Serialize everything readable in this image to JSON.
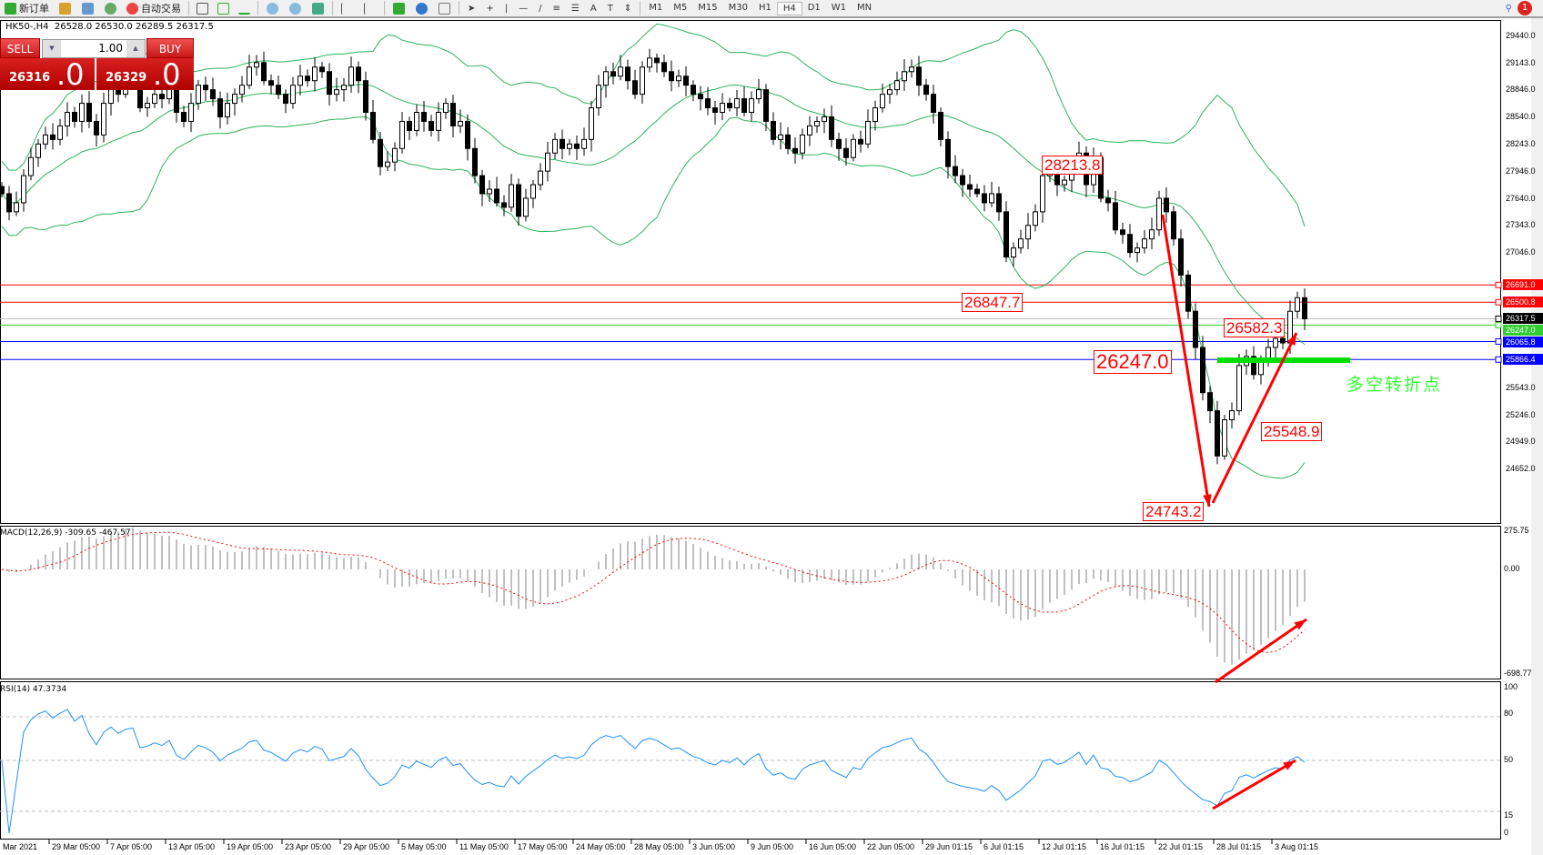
{
  "toolbar": {
    "new_order": "新订单",
    "auto_trading": "自动交易",
    "timeframes": [
      "M1",
      "M5",
      "M15",
      "M30",
      "H1",
      "H4",
      "D1",
      "W1",
      "MN"
    ],
    "active_timeframe": "H4",
    "notification_count": "1"
  },
  "chart_info": {
    "symbol": "HK50-,H4",
    "open": "26528.0",
    "high": "26530.0",
    "low": "26289.5",
    "close": "26317.5"
  },
  "trade_panel": {
    "sell_label": "SELL",
    "buy_label": "BUY",
    "lot": "1.00",
    "bid_main": "26316",
    "bid_frac": ".0",
    "ask_main": "26329",
    "ask_frac": ".0"
  },
  "price_axis": [
    "29440.0",
    "29143.0",
    "28846.0",
    "28540.0",
    "28243.0",
    "27946.0",
    "27640.0",
    "27343.0",
    "27046.0",
    "25543.0",
    "25246.0",
    "24949.0",
    "24652.0"
  ],
  "level_lines": [
    {
      "value": "26691.0",
      "color": "#ff0000"
    },
    {
      "value": "26500.8",
      "color": "#ff0000"
    },
    {
      "value": "26317.5",
      "color": "#000000",
      "line": "#c0c0c0"
    },
    {
      "value": "26247.0",
      "color": "#32cd32"
    },
    {
      "value": "26065.8",
      "color": "#0000ff"
    },
    {
      "value": "25866.4",
      "color": "#0000ff"
    }
  ],
  "annotations": {
    "high1": "28213.8",
    "low1": "26847.7",
    "high2": "26582.3",
    "pivot": "26247.0",
    "low2": "25548.9",
    "low3": "24743.2",
    "pivot_text": "多空转折点"
  },
  "macd": {
    "label": "MACD(12,26,9) -309.65 -467.57",
    "axis": [
      "275.75",
      "0.00",
      "-698.77"
    ]
  },
  "rsi": {
    "label": "RSI(14) 47.3734",
    "axis": [
      "100",
      "80",
      "50",
      "15",
      "0"
    ]
  },
  "time_axis": [
    "Mar 2021",
    "29 Mar 05:00",
    "7 Apr 05:00",
    "13 Apr 05:00",
    "19 Apr 05:00",
    "23 Apr 05:00",
    "29 Apr 05:00",
    "5 May 05:00",
    "11 May 05:00",
    "17 May 05:00",
    "24 May 05:00",
    "28 May 05:00",
    "3 Jun 05:00",
    "9 Jun 05:00",
    "16 Jun 05:00",
    "22 Jun 05:00",
    "29 Jun 01:15",
    "6 Jul 01:15",
    "12 Jul 01:15",
    "16 Jul 01:15",
    "22 Jul 01:15",
    "28 Jul 01:15",
    "3 Aug 01:15"
  ],
  "chart_data": {
    "type": "candlestick",
    "symbol": "HK50-",
    "timeframe": "H4",
    "ylim": [
      24652,
      29440
    ],
    "indicators": [
      "Bollinger Bands",
      "MACD(12,26,9)",
      "RSI(14)"
    ],
    "colors": {
      "bands": "#2db35d",
      "macd_signal": "#ff0000",
      "macd_hist": "#c0c0c0",
      "rsi": "#1e90ff",
      "arrows": "#ff0000",
      "pivot": "#00e000"
    },
    "closes": [
      27700,
      27500,
      27600,
      27900,
      28100,
      28250,
      28350,
      28300,
      28450,
      28600,
      28500,
      28700,
      28500,
      28350,
      28700,
      28900,
      28800,
      28950,
      29000,
      28650,
      28700,
      28800,
      28750,
      28900,
      28600,
      28500,
      28700,
      28900,
      28850,
      28750,
      28550,
      28700,
      28800,
      28900,
      29100,
      29150,
      28950,
      28900,
      28800,
      28700,
      28900,
      29000,
      28950,
      29100,
      29050,
      28800,
      28850,
      28900,
      29100,
      28950,
      28600,
      28300,
      28000,
      28050,
      28200,
      28500,
      28400,
      28600,
      28500,
      28400,
      28600,
      28700,
      28450,
      28500,
      28200,
      27900,
      27700,
      27750,
      27600,
      27550,
      27800,
      27450,
      27650,
      27800,
      27950,
      28150,
      28300,
      28200,
      28250,
      28200,
      28300,
      28650,
      28900,
      29050,
      29000,
      29100,
      28950,
      28800,
      29100,
      29200,
      29150,
      29050,
      28950,
      29000,
      28900,
      28800,
      28750,
      28650,
      28600,
      28700,
      28650,
      28750,
      28600,
      28750,
      28850,
      28500,
      28300,
      28350,
      28200,
      28150,
      28350,
      28450,
      28500,
      28550,
      28300,
      28200,
      28100,
      28300,
      28250,
      28500,
      28650,
      28800,
      28850,
      28950,
      29050,
      29100,
      28900,
      28800,
      28600,
      28300,
      28000,
      27900,
      27800,
      27750,
      27700,
      27600,
      27700,
      27500,
      27000,
      27100,
      27200,
      27350,
      27500,
      27900,
      27950,
      27800,
      27850,
      28000,
      28150,
      27800,
      28100,
      27650,
      27600,
      27300,
      27250,
      27050,
      27100,
      27200,
      27300,
      27650,
      27500,
      27200,
      26800,
      26400,
      26000,
      25500,
      25300,
      24800,
      25200,
      25300,
      25800,
      25900,
      25700,
      25850,
      26000,
      26100,
      26050,
      26400,
      26550,
      26317.5
    ]
  }
}
